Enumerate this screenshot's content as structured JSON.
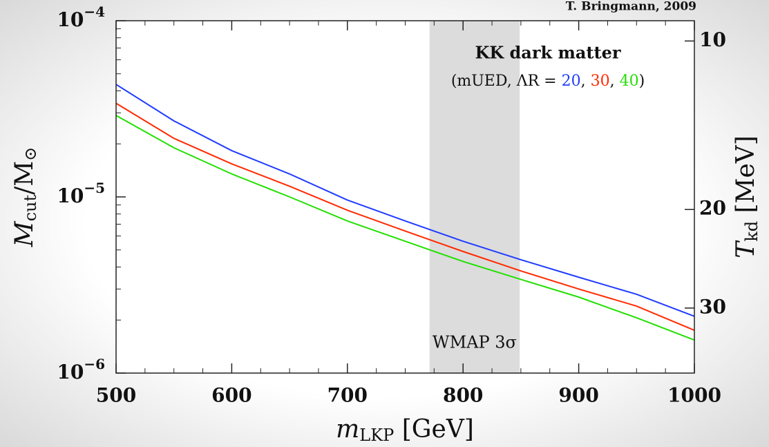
{
  "chart_data": {
    "type": "line",
    "credit": "T. Bringmann, 2009",
    "title": "KK dark matter",
    "subtitle_parts": [
      "(mUED, ΛR = ",
      ", ",
      ", ",
      ")"
    ],
    "xlabel": [
      {
        "text": "m"
      },
      {
        "text": "LKP",
        "sub": true
      },
      {
        "text": " [GeV]"
      }
    ],
    "ylabel": [
      {
        "text": "M"
      },
      {
        "text": "cut",
        "sub": true
      },
      {
        "text": "/M"
      },
      {
        "text": "⊙",
        "sub": true
      }
    ],
    "y2label": [
      {
        "text": "T"
      },
      {
        "text": "kd",
        "sub": true
      },
      {
        "text": " [MeV]"
      }
    ],
    "x": [
      500,
      550,
      600,
      650,
      700,
      750,
      800,
      850,
      900,
      950,
      1000
    ],
    "series": [
      {
        "name": "20",
        "color": "#1f3cff",
        "values": [
          4.35e-05,
          2.7e-05,
          1.83e-05,
          1.35e-05,
          9.6e-06,
          7.3e-06,
          5.6e-06,
          4.4e-06,
          3.5e-06,
          2.8e-06,
          2.1e-06
        ]
      },
      {
        "name": "30",
        "color": "#ff2a00",
        "values": [
          3.4e-05,
          2.15e-05,
          1.54e-05,
          1.15e-05,
          8.4e-06,
          6.4e-06,
          4.9e-06,
          3.8e-06,
          3e-06,
          2.4e-06,
          1.75e-06
        ]
      },
      {
        "name": "40",
        "color": "#22e000",
        "values": [
          2.9e-05,
          1.9e-05,
          1.35e-05,
          1e-05,
          7.3e-06,
          5.6e-06,
          4.3e-06,
          3.4e-06,
          2.7e-06,
          2.06e-06,
          1.54e-06
        ]
      }
    ],
    "band": {
      "x": [
        771,
        849
      ],
      "label": "WMAP 3σ",
      "color": "#dcdcdc"
    },
    "xlim": [
      500,
      1000
    ],
    "xticks": [
      500,
      600,
      700,
      800,
      900,
      1000
    ],
    "xminorticks": [
      525,
      550,
      575,
      625,
      650,
      675,
      725,
      750,
      775,
      825,
      850,
      875,
      925,
      950,
      975
    ],
    "ylim": [
      1e-06,
      0.0001
    ],
    "yscale": "log",
    "yticks": [
      {
        "value": 1e-06,
        "label": "10−6"
      },
      {
        "value": 1e-05,
        "label": "10−5"
      },
      {
        "value": 0.0001,
        "label": "10−4"
      }
    ],
    "yminorticks": [
      2e-06,
      3e-06,
      4e-06,
      5e-06,
      6e-06,
      7e-06,
      8e-06,
      9e-06,
      2e-05,
      3e-05,
      4e-05,
      5e-05,
      6e-05,
      7e-05,
      8e-05,
      9e-05
    ],
    "y2lim": [
      9.2,
      39.2
    ],
    "y2scale": "log",
    "y2ticks": [
      10,
      20,
      30
    ]
  }
}
